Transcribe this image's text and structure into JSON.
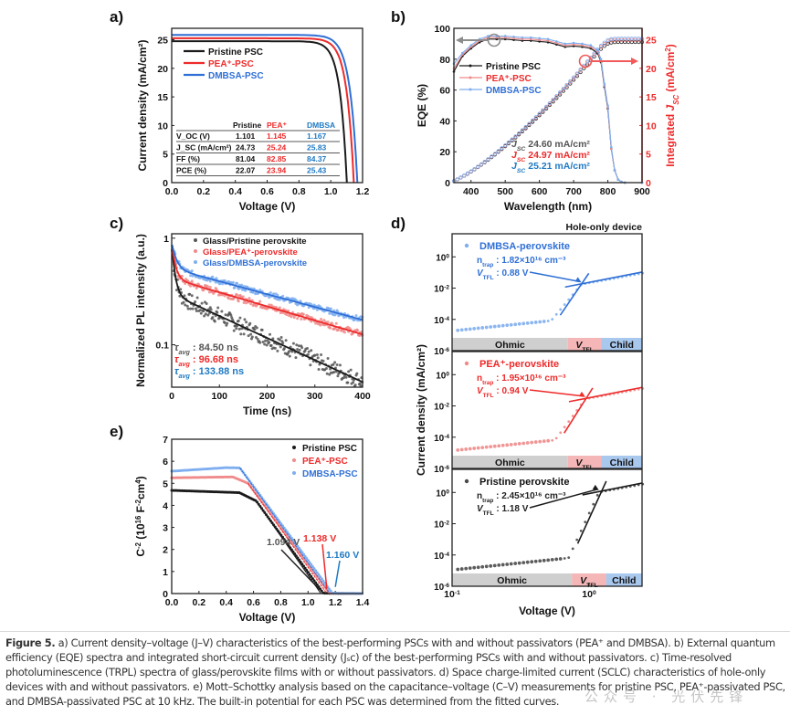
{
  "colors": {
    "pristine": "#1a1a1a",
    "pea": "#ee2a2a",
    "dmbsa": "#2f6fd6",
    "dmbsa_text": "#1f7ac4",
    "pea_light": "#f08a8a",
    "dmbsa_light": "#7eaef0",
    "pristine_light": "#555555",
    "ohmic_band": "#cfcfcf",
    "vtfl_band": "#f4b6b6",
    "child_band": "#a9c8ee",
    "gray_arrow": "#8c8c8c",
    "red_arrow": "#f25a5a"
  },
  "chart_data": [
    {
      "id": "a",
      "panel_label": "a)",
      "type": "line",
      "xlabel": "Voltage (V)",
      "ylabel": "Current density (mA/cm²)",
      "xlim": [
        0.0,
        1.2
      ],
      "ylim": [
        0,
        27
      ],
      "xticks": [
        "0.0",
        "0.2",
        "0.4",
        "0.6",
        "0.8",
        "1.0",
        "1.2"
      ],
      "yticks": [
        "0",
        "5",
        "10",
        "15",
        "20",
        "25"
      ],
      "legend": [
        "Pristine PSC",
        "PEA⁺-PSC",
        "DMBSA-PSC"
      ],
      "legend_position": "top-left",
      "series": [
        {
          "name": "Pristine PSC",
          "jsc": 24.73,
          "voc": 1.101,
          "ff": 81.04
        },
        {
          "name": "PEA⁺-PSC",
          "jsc": 25.24,
          "voc": 1.145,
          "ff": 82.85
        },
        {
          "name": "DMBSA-PSC",
          "jsc": 25.83,
          "voc": 1.167,
          "ff": 84.37
        }
      ],
      "table": {
        "headers": [
          "",
          "Pristine",
          "PEA⁺",
          "DMBSA"
        ],
        "rows": [
          [
            "V_OC (V)",
            "1.101",
            "1.145",
            "1.167"
          ],
          [
            "J_SC (mA/cm²)",
            "24.73",
            "25.24",
            "25.83"
          ],
          [
            "FF (%)",
            "81.04",
            "82.85",
            "84.37"
          ],
          [
            "PCE (%)",
            "22.07",
            "23.94",
            "25.43"
          ]
        ]
      }
    },
    {
      "id": "b",
      "panel_label": "b)",
      "type": "line",
      "xlabel": "Wavelength (nm)",
      "ylabel": "EQE (%)",
      "y2label": "Integrated J_SC (mA/cm²)",
      "xlim": [
        350,
        900
      ],
      "ylim": [
        0,
        100
      ],
      "y2lim": [
        0,
        27
      ],
      "xticks": [
        "400",
        "500",
        "600",
        "700",
        "800",
        "900"
      ],
      "yticks": [
        "0",
        "20",
        "40",
        "60",
        "80",
        "100"
      ],
      "y2ticks": [
        "0",
        "5",
        "10",
        "15",
        "20",
        "25"
      ],
      "legend": [
        "Pristine PSC",
        "PEA⁺-PSC",
        "DMBSA-PSC"
      ],
      "legend_position": "left",
      "eqe_x": [
        350,
        375,
        400,
        425,
        450,
        475,
        500,
        525,
        550,
        575,
        600,
        625,
        650,
        675,
        700,
        725,
        750,
        770,
        780,
        790,
        800,
        810,
        820,
        830,
        840,
        850,
        900
      ],
      "series": [
        {
          "name": "Pristine PSC",
          "eqe": [
            72,
            82,
            87,
            91,
            93,
            93,
            93,
            92.5,
            92,
            92,
            91.5,
            91,
            89.5,
            88,
            88.5,
            88,
            87,
            84,
            78,
            62,
            48,
            22,
            8,
            2,
            0.5,
            0,
            0
          ],
          "integrated_jsc": 24.6
        },
        {
          "name": "PEA⁺-PSC",
          "eqe": [
            74,
            83,
            88,
            92,
            94,
            94,
            94,
            93.5,
            93,
            93,
            92.5,
            92,
            90.5,
            89,
            89.5,
            89,
            88,
            85,
            79,
            63,
            49,
            22,
            8,
            2,
            0.5,
            0,
            0
          ],
          "integrated_jsc": 24.97
        },
        {
          "name": "DMBSA-PSC",
          "eqe": [
            77,
            84,
            89,
            93,
            95,
            95,
            95,
            94.5,
            94,
            94,
            93.5,
            93,
            91.5,
            90,
            90.5,
            90,
            89,
            86,
            80,
            64,
            50,
            23,
            8,
            2,
            0.5,
            0,
            0
          ],
          "integrated_jsc": 25.21
        }
      ],
      "annotations": [
        "J_SC 24.60 mA/cm²",
        "J_SC 24.97 mA/cm²",
        "J_SC 25.21 mA/cm²"
      ]
    },
    {
      "id": "c",
      "panel_label": "c)",
      "type": "scatter",
      "xlabel": "Time (ns)",
      "ylabel": "Normalized PL intensity (a.u.)",
      "xlim": [
        0,
        400
      ],
      "ylim": [
        0.04,
        1.1
      ],
      "yscale": "log",
      "xticks": [
        "0",
        "100",
        "200",
        "300",
        "400"
      ],
      "yticks": [
        "0.1",
        "1"
      ],
      "legend": [
        "Glass/Pristine perovskite",
        "Glass/PEA⁺-perovskite",
        "Glass/DMBSA-perovskite"
      ],
      "legend_position": "top-right",
      "series": [
        {
          "name": "Glass/Pristine perovskite",
          "tau_avg_ns": 84.5,
          "fit": {
            "a1": 0.55,
            "t1": 6,
            "a2": 0.3,
            "t2": 210,
            "floor": 0.0
          }
        },
        {
          "name": "Glass/PEA⁺-perovskite",
          "tau_avg_ns": 96.68,
          "fit": {
            "a1": 0.45,
            "t1": 7,
            "a2": 0.42,
            "t2": 330,
            "floor": 0.0
          }
        },
        {
          "name": "Glass/DMBSA-perovskite",
          "tau_avg_ns": 133.88,
          "fit": {
            "a1": 0.38,
            "t1": 9,
            "a2": 0.52,
            "t2": 360,
            "floor": 0.0
          }
        }
      ],
      "annotations": [
        "τavg : 84.50 ns",
        "τavg : 96.68 ns",
        "τavg : 133.88 ns"
      ]
    },
    {
      "id": "d",
      "panel_label": "d)",
      "type": "scatter",
      "title": "Hole-only device",
      "xlabel": "Voltage (V)",
      "ylabel": "Current density (mA/cm²)",
      "xscale": "log",
      "yscale": "log",
      "xlim": [
        0.1,
        2.6
      ],
      "ylim": [
        1e-06,
        30
      ],
      "xticks": [
        "10⁻¹",
        "10⁰"
      ],
      "yticks": [
        "10⁻⁶",
        "10⁻⁴",
        "10⁻²",
        "10⁰"
      ],
      "regions": [
        "Ohmic",
        "V_TFL",
        "Child"
      ],
      "subplots": [
        {
          "name": "DMBSA-perovskite",
          "n_trap": "1.82×10¹⁶ cm⁻³",
          "v_tfl": "0.88 V",
          "v_tfl_value": 0.88,
          "j_low": 2e-05,
          "j_knee": 0.0001,
          "j_high": 0.05,
          "band_vtfl": [
            0.7,
            1.23
          ]
        },
        {
          "name": "PEA⁺-perovskite",
          "n_trap": "1.95×10¹⁶ cm⁻³",
          "v_tfl": "0.94 V",
          "v_tfl_value": 0.94,
          "j_low": 1.5e-05,
          "j_knee": 6e-05,
          "j_high": 0.08,
          "band_vtfl": [
            0.7,
            1.23
          ]
        },
        {
          "name": "Pristine perovskite",
          "n_trap": "2.45×10¹⁶ cm⁻³",
          "v_tfl": "1.18 V",
          "v_tfl_value": 1.18,
          "j_low": 1.2e-05,
          "j_knee": 6e-05,
          "j_high": 3,
          "band_vtfl": [
            0.75,
            1.33
          ]
        }
      ]
    },
    {
      "id": "e",
      "panel_label": "e)",
      "type": "scatter",
      "xlabel": "Voltage (V)",
      "ylabel": "C⁻² (10¹⁶ F⁻²cm⁴)",
      "xlim": [
        0.0,
        1.4
      ],
      "ylim": [
        0,
        7
      ],
      "xticks": [
        "0.0",
        "0.2",
        "0.4",
        "0.6",
        "0.8",
        "1.0",
        "1.2",
        "1.4"
      ],
      "yticks": [
        "0",
        "1",
        "2",
        "3",
        "4",
        "5",
        "6",
        "7"
      ],
      "legend": [
        "Pristine PSC",
        "PEA⁺-PSC",
        "DMBSA-PSC"
      ],
      "legend_position": "top-right",
      "series": [
        {
          "name": "Pristine PSC",
          "plateau": [
            4.68,
            4.55
          ],
          "knee_v": 0.62,
          "knee_c": 4.2,
          "vbi": 1.094
        },
        {
          "name": "PEA⁺-PSC",
          "plateau": [
            5.25,
            5.3
          ],
          "knee_v": 0.56,
          "knee_c": 5.0,
          "vbi": 1.138
        },
        {
          "name": "DMBSA-PSC",
          "plateau": [
            5.55,
            5.75
          ],
          "knee_v": 0.5,
          "knee_c": 5.7,
          "vbi": 1.16
        }
      ],
      "annotations": [
        "1.094 V",
        "1.138 V",
        "1.160 V"
      ]
    }
  ],
  "caption": {
    "lead": "Figure 5.",
    "text": " a) Current density–voltage (J–V) characteristics of the best-performing PSCs with and without passivators (PEA⁺ and DMBSA). b) External quantum efficiency (EQE) spectra and integrated short-circuit current density (Jₛc) of the best-performing PSCs with and without passivators. c) Time-resolved photoluminescence (TRPL) spectra of glass/perovskite films with or without passivators. d) Space charge-limited current (SCLC) characteristics of hole-only devices with and without passivators. e) Mott–Schottky analysis based on the capacitance–voltage (C–V) measurements for pristine PSC, PEA⁺-passivated PSC, and DMBSA-passivated PSC at 10 kHz. The built-in potential for each PSC was determined from the fitted curves."
  },
  "watermark": "公众号 · 光伏先锋"
}
